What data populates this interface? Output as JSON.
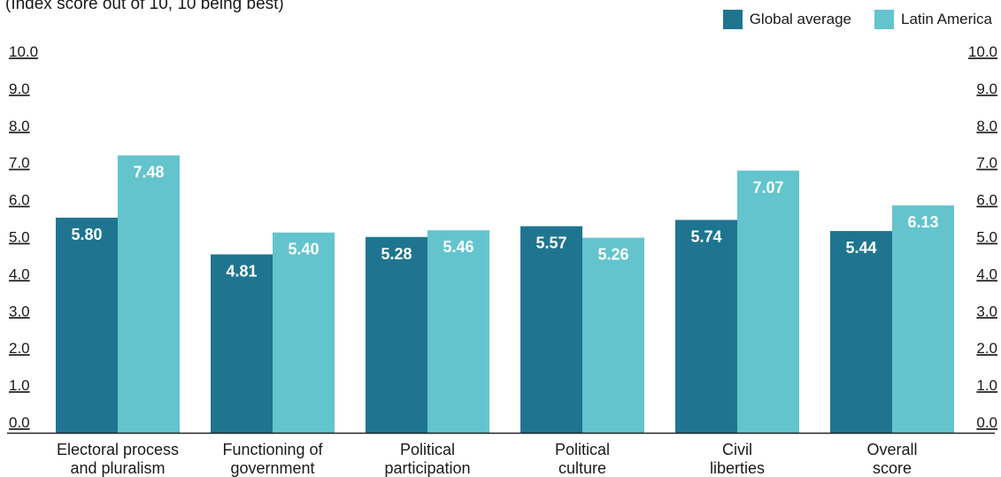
{
  "colors": {
    "global": "#1f7590",
    "latin": "#63c4cd",
    "axis": "#222222",
    "text": "#1a1a1a"
  },
  "chart_data": {
    "type": "bar",
    "subtitle": "(Index score out of 10, 10 being best)",
    "categories": [
      [
        "Electoral process",
        "and pluralism"
      ],
      [
        "Functioning of",
        "government"
      ],
      [
        "Political",
        "participation"
      ],
      [
        "Political",
        "culture"
      ],
      [
        "Civil",
        "liberties"
      ],
      [
        "Overall",
        "score"
      ]
    ],
    "series": [
      {
        "name": "Global average",
        "values": [
          5.8,
          4.81,
          5.28,
          5.57,
          5.74,
          5.44
        ]
      },
      {
        "name": "Latin America",
        "values": [
          7.48,
          5.4,
          5.46,
          5.26,
          7.07,
          6.13
        ]
      }
    ],
    "ylim": [
      0,
      10
    ],
    "yticks": [
      "0.0",
      "1.0",
      "2.0",
      "3.0",
      "4.0",
      "5.0",
      "6.0",
      "7.0",
      "8.0",
      "9.0",
      "10.0"
    ],
    "yaxis_sides": "both",
    "grid": false,
    "legend_position": "top-right"
  }
}
